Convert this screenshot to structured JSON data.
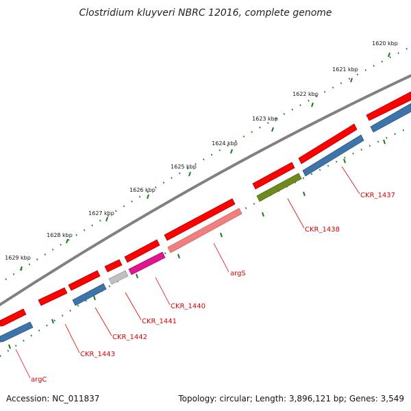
{
  "title": "Clostridium kluyveri NBRC 12016, complete genome",
  "footer": {
    "accession": "Accession: NC_011837",
    "summary": "Topology: circular; Length: 3,896,121 bp; Genes: 3,549"
  },
  "ruler_labels": [
    "1620 kbp",
    "1621 kbp",
    "1622 kbp",
    "1623 kbp",
    "1624 kbp",
    "1625 kbp",
    "1626 kbp",
    "1627 kbp",
    "1628 kbp",
    "1629 kbp"
  ],
  "gene_labels": [
    "CKR_1437",
    "CKR_1438",
    "argS",
    "CKR_1440",
    "CKR_1441",
    "CKR_1442",
    "CKR_1443",
    "argC"
  ],
  "colors": {
    "cds_red": "#ff0000",
    "rna_blue": "#3d74aa",
    "gene_olive": "#6e8a1f",
    "gene_pink": "#f08080",
    "gene_magenta": "#e0168f",
    "gene_gray": "#c0c0c0",
    "tick_green": "#1a7a1a",
    "backbone": "#808080",
    "label_red": "#dd0000"
  }
}
